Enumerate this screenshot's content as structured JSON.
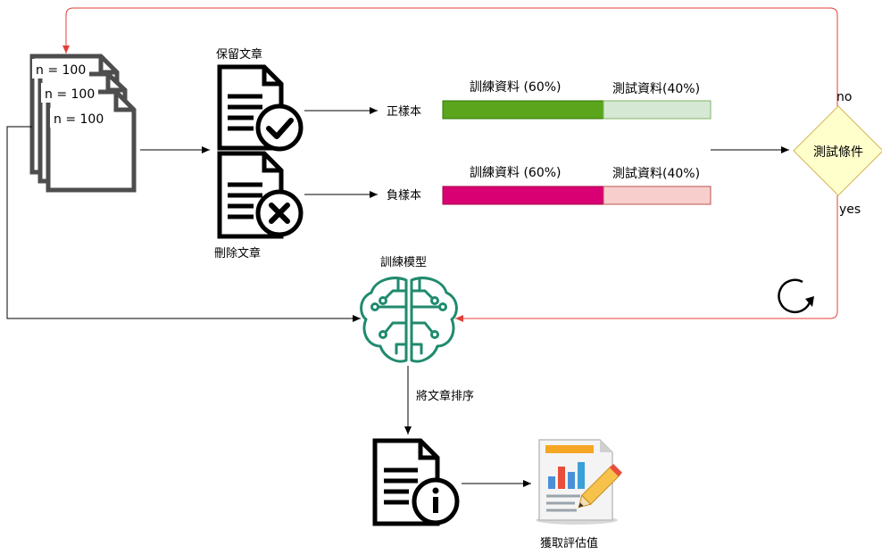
{
  "diagram": {
    "doc_stack": {
      "labels": [
        "n = 100",
        "n = 100",
        "n = 100"
      ]
    },
    "keep_doc_label": "保留文章",
    "delete_doc_label": "刪除文章",
    "positive_label": "正樣本",
    "negative_label": "負樣本",
    "positive_bar": {
      "train_label": "訓練資料 (60%)",
      "test_label": "測試資料(40%)",
      "train_pct": 60,
      "test_pct": 40,
      "train_color": "#5aa51c",
      "test_color": "#d5e8d4"
    },
    "negative_bar": {
      "train_label": "訓練資料 (60%)",
      "test_label": "測試資料(40%)",
      "train_pct": 60,
      "test_pct": 40,
      "train_color": "#d80073",
      "test_color": "#f8cecc"
    },
    "decision": {
      "label": "測試條件",
      "no_label": "no",
      "yes_label": "yes",
      "fill": "#ffffcc",
      "stroke": "#d6b656"
    },
    "train_model_label": "訓練模型",
    "sort_label": "將文章排序",
    "evaluate_label": "獲取評估值",
    "colors": {
      "loop_line": "#e0403a",
      "brain": "#1f8a6e",
      "doc_stack": "#4d4d4d"
    },
    "icons": {
      "doc_keep": "document-check-icon",
      "doc_delete": "document-x-icon",
      "doc_info": "document-info-icon",
      "brain": "brain-circuit-icon",
      "report": "report-chart-icon",
      "refresh": "refresh-icon"
    }
  }
}
